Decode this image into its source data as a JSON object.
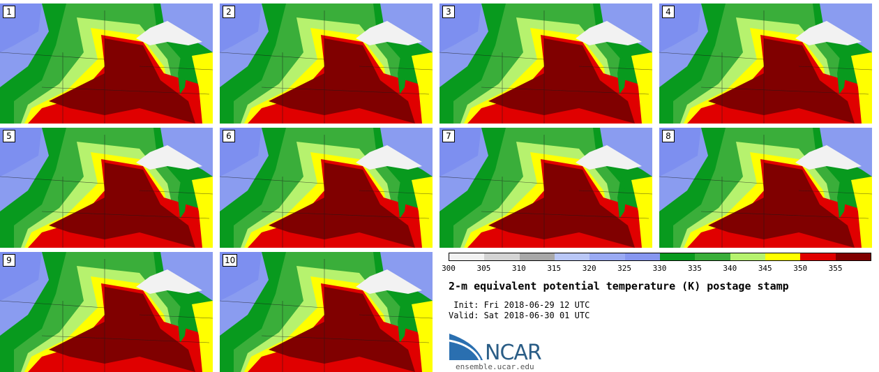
{
  "panels": [
    {
      "label": "1"
    },
    {
      "label": "2"
    },
    {
      "label": "3"
    },
    {
      "label": "4"
    },
    {
      "label": "5"
    },
    {
      "label": "6"
    },
    {
      "label": "7"
    },
    {
      "label": "8"
    },
    {
      "label": "9"
    },
    {
      "label": "10"
    }
  ],
  "colorbar": {
    "ticks": [
      "300",
      "305",
      "310",
      "315",
      "320",
      "325",
      "330",
      "335",
      "340",
      "345",
      "350",
      "355"
    ],
    "colors": [
      "#f2f2f2",
      "#d4d4d4",
      "#a8a8a8",
      "#b9c7f6",
      "#9aaaf3",
      "#8797f0",
      "#089a1e",
      "#3aae3a",
      "#b6f26e",
      "#ffff00",
      "#e00000",
      "#800000"
    ]
  },
  "title": "2-m equivalent potential temperature (K) postage stamp",
  "init": " Init: Fri 2018-06-29 12 UTC",
  "valid": "Valid: Sat 2018-06-30 01 UTC",
  "logo": {
    "text": "NCAR",
    "site": "ensemble.ucar.edu"
  }
}
